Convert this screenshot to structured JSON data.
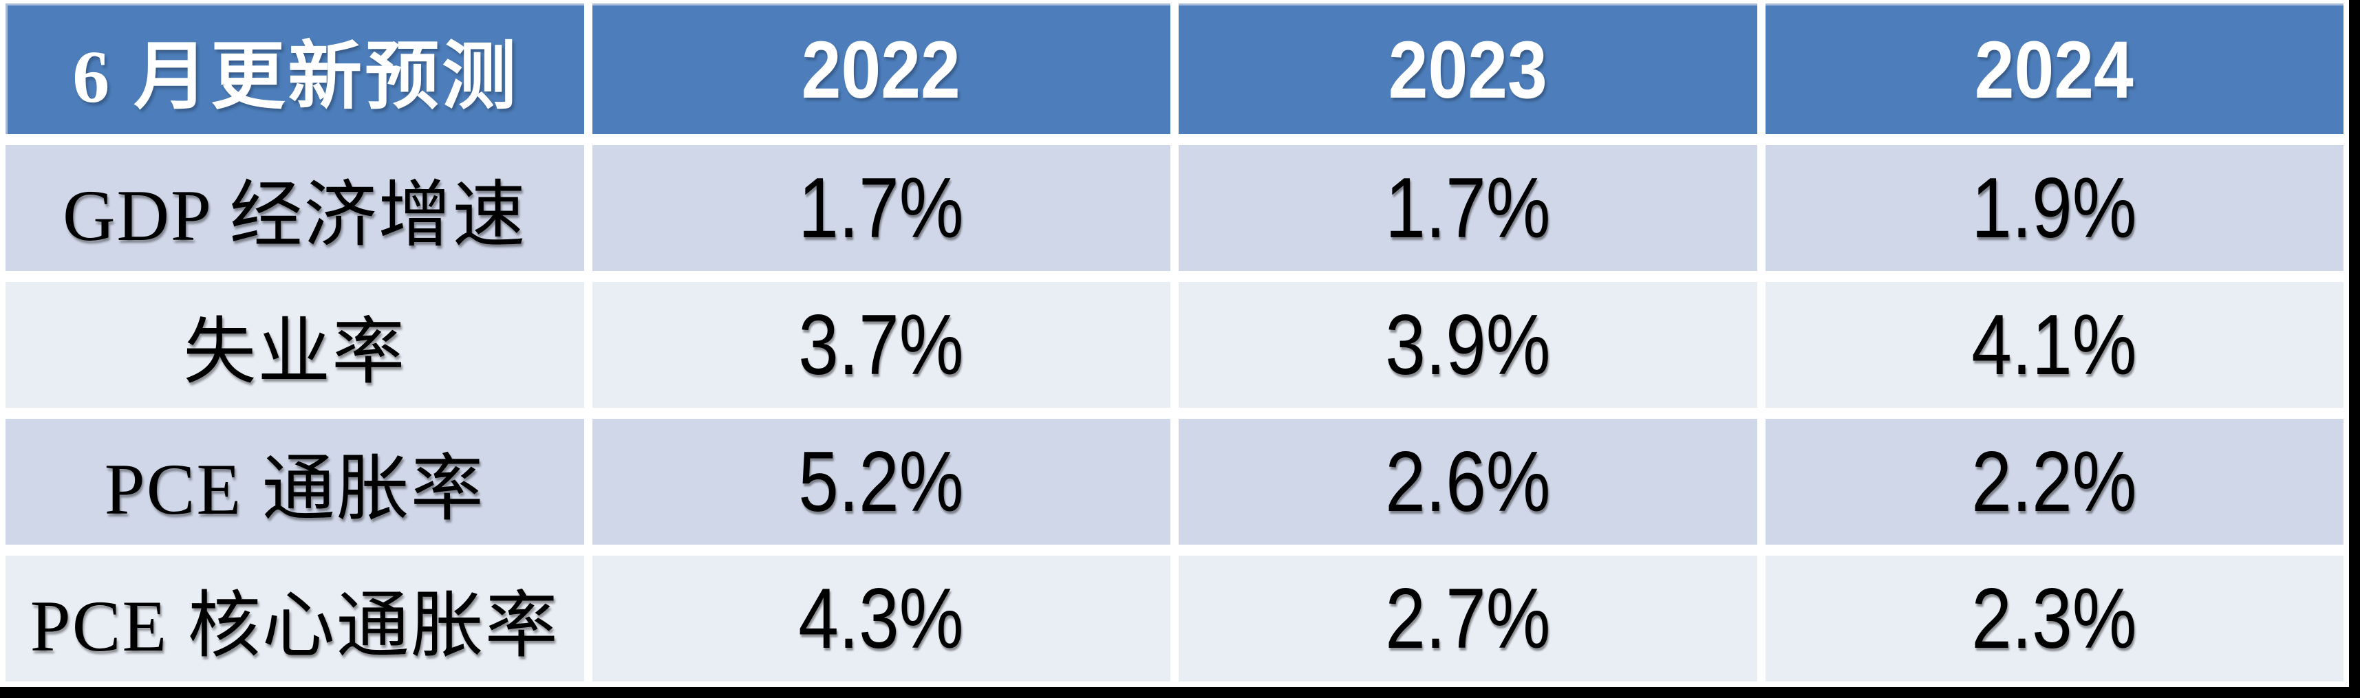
{
  "table": {
    "header": {
      "title": "6 月更新预测",
      "years": [
        "2022",
        "2023",
        "2024"
      ]
    },
    "rows": [
      {
        "label": "GDP 经济增速",
        "values": [
          "1.7%",
          "1.7%",
          "1.9%"
        ]
      },
      {
        "label": "失业率",
        "values": [
          "3.7%",
          "3.9%",
          "4.1%"
        ]
      },
      {
        "label": "PCE 通胀率",
        "values": [
          "5.2%",
          "2.6%",
          "2.2%"
        ]
      },
      {
        "label": "PCE 核心通胀率",
        "values": [
          "4.3%",
          "2.7%",
          "2.3%"
        ]
      }
    ],
    "colors": {
      "header_bg": "#4D7EBB",
      "header_text": "#FFFFFF",
      "row_band_dark": "#D0D7E8",
      "row_band_light": "#E9EDF4",
      "cell_text": "#000000",
      "gutter": "#FFFFFF",
      "frame": "#000000"
    }
  },
  "chart_data": {
    "type": "table",
    "title": "6 月更新预测",
    "columns": [
      "6 月更新预测",
      "2022",
      "2023",
      "2024"
    ],
    "rows": [
      [
        "GDP 经济增速",
        "1.7%",
        "1.7%",
        "1.9%"
      ],
      [
        "失业率",
        "3.7%",
        "3.9%",
        "4.1%"
      ],
      [
        "PCE 通胀率",
        "5.2%",
        "2.6%",
        "2.2%"
      ],
      [
        "PCE 核心通胀率",
        "4.3%",
        "2.7%",
        "2.3%"
      ]
    ]
  }
}
